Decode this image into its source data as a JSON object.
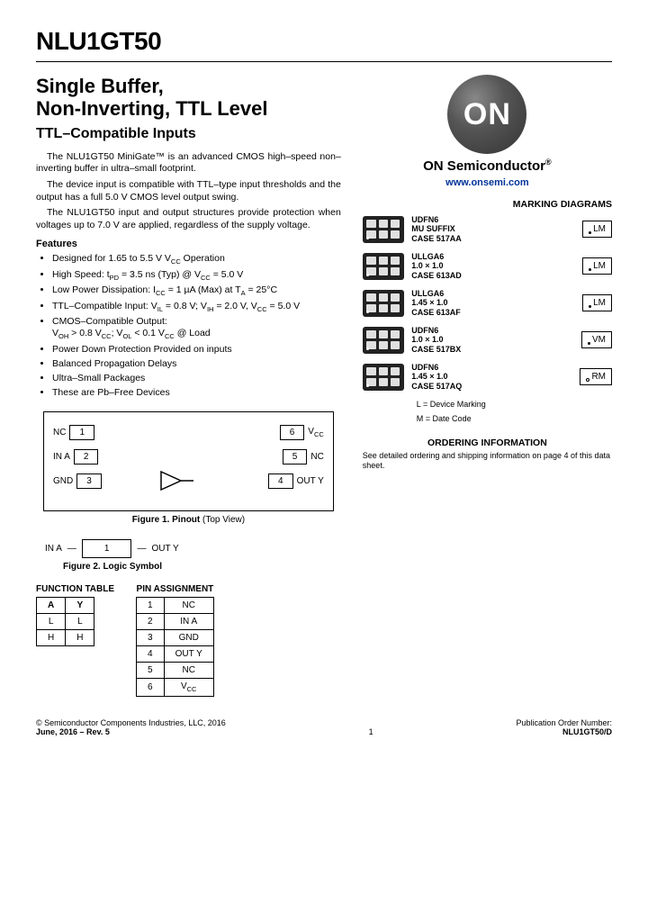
{
  "part_number": "NLU1GT50",
  "title_line1": "Single Buffer,",
  "title_line2": "Non-Inverting, TTL Level",
  "subtitle": "TTL–Compatible Inputs",
  "paragraphs": [
    "The NLU1GT50 MiniGate™ is an advanced CMOS high–speed non–inverting buffer in ultra–small footprint.",
    "The device input is compatible with TTL–type input thresholds and the output has a full 5.0 V CMOS level output swing.",
    "The NLU1GT50 input and output structures provide protection when voltages up to 7.0 V are applied, regardless of the supply voltage."
  ],
  "features_heading": "Features",
  "features": [
    "Designed for 1.65 to 5.5 V V_CC Operation",
    "High Speed: t_PD = 3.5 ns (Typ) @ V_CC = 5.0 V",
    "Low Power Dissipation: I_CC = 1 µA (Max) at T_A = 25°C",
    "TTL–Compatible Input: V_IL = 0.8 V; V_IH = 2.0 V, V_CC = 5.0 V",
    "CMOS–Compatible Output:\nV_OH > 0.8 V_CC; V_OL < 0.1 V_CC @ Load",
    "Power Down Protection Provided on inputs",
    "Balanced Propagation Delays",
    "Ultra–Small Packages",
    "These are Pb–Free Devices"
  ],
  "pinout": {
    "left": [
      {
        "num": "1",
        "label": "NC"
      },
      {
        "num": "2",
        "label": "IN A"
      },
      {
        "num": "3",
        "label": "GND"
      }
    ],
    "right": [
      {
        "num": "6",
        "label": "V_CC"
      },
      {
        "num": "5",
        "label": "NC"
      },
      {
        "num": "4",
        "label": "OUT Y"
      }
    ],
    "caption_bold": "Figure 1. Pinout",
    "caption_norm": " (Top View)"
  },
  "logic_symbol": {
    "in_label": "IN A",
    "box_text": "1",
    "out_label": "OUT Y",
    "caption": "Figure 2. Logic Symbol"
  },
  "function_table": {
    "title": "FUNCTION TABLE",
    "headers": [
      "A",
      "Y"
    ],
    "rows": [
      [
        "L",
        "L"
      ],
      [
        "H",
        "H"
      ]
    ]
  },
  "pin_assignment": {
    "title": "PIN ASSIGNMENT",
    "rows": [
      [
        "1",
        "NC"
      ],
      [
        "2",
        "IN A"
      ],
      [
        "3",
        "GND"
      ],
      [
        "4",
        "OUT Y"
      ],
      [
        "5",
        "NC"
      ],
      [
        "6",
        "V_CC"
      ]
    ]
  },
  "brand": {
    "logo_text": "ON",
    "name": "ON Semiconductor",
    "url": "www.onsemi.com"
  },
  "marking": {
    "heading": "MARKING DIAGRAMS",
    "packages": [
      {
        "name": "UDFN6",
        "line2": "MU SUFFIX",
        "line3": "CASE 517AA",
        "code": "LM",
        "mark_type": "dot"
      },
      {
        "name": "ULLGA6",
        "line2": "1.0 × 1.0",
        "line3": "CASE 613AD",
        "code": "LM",
        "mark_type": "dot"
      },
      {
        "name": "ULLGA6",
        "line2": "1.45 × 1.0",
        "line3": "CASE 613AF",
        "code": "LM",
        "mark_type": "dot"
      },
      {
        "name": "UDFN6",
        "line2": "1.0 × 1.0",
        "line3": "CASE 517BX",
        "code": "VM",
        "mark_type": "dot"
      },
      {
        "name": "UDFN6",
        "line2": "1.45 × 1.0",
        "line3": "CASE 517AQ",
        "code": "RM",
        "mark_type": "circ"
      }
    ],
    "legend_l": "L    = Device Marking",
    "legend_m": "M    = Date Code"
  },
  "ordering": {
    "heading": "ORDERING INFORMATION",
    "text": "See detailed ordering and shipping information on page 4 of this data sheet."
  },
  "footer": {
    "copyright": "© Semiconductor Components Industries, LLC, 2016",
    "date_rev": "June, 2016 – Rev. 5",
    "page": "1",
    "pub_label": "Publication Order Number:",
    "pub_num": "NLU1GT50/D"
  },
  "colors": {
    "text": "#000000",
    "link": "#003399",
    "chip_body": "#222222",
    "chip_pad": "#e0e0e0",
    "logo_grad_light": "#888888",
    "logo_grad_dark": "#333333"
  }
}
